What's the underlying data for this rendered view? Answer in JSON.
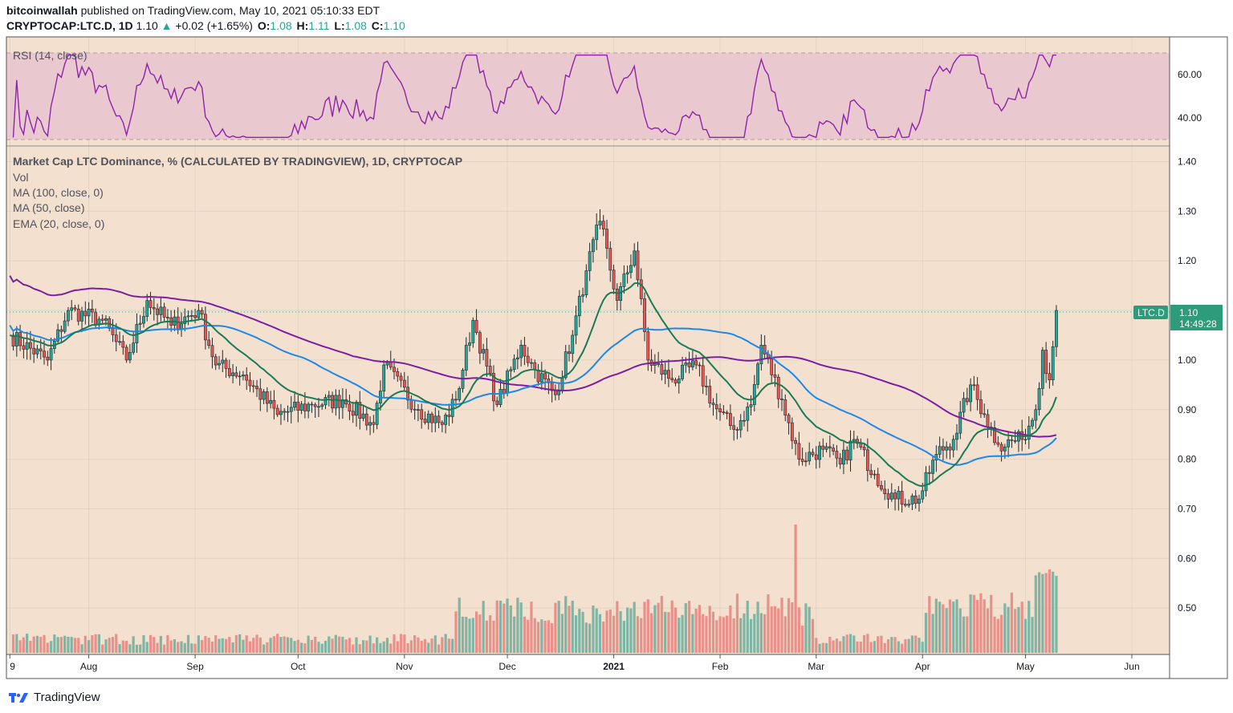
{
  "header": {
    "author": "bitcoinwallah",
    "published_text": "published on TradingView.com, May 10, 2021 05:10:33 EDT",
    "symbol": "CRYPTOCAP:LTC.D, 1D",
    "last": "1.10",
    "change": "+0.02 (+1.65%)",
    "o_label": "O:",
    "o": "1.08",
    "h_label": "H:",
    "h": "1.11",
    "l_label": "L:",
    "l": "1.08",
    "c_label": "C:",
    "c": "1.10"
  },
  "colors": {
    "background": "#f3e0cf",
    "rsi_band": "#e9c8cf",
    "rsi_line": "#8e24aa",
    "up": "#26a69a",
    "down": "#ef5350",
    "vol_up": "#7fb5a5",
    "vol_down": "#e8918a",
    "ma100": "#7b1fa2",
    "ma50": "#1e88e5",
    "ema20": "#1b7a55",
    "grid": "#e5d3c2"
  },
  "rsi_pane": {
    "label": "RSI (14, close)",
    "ticks": [
      "60.00",
      "40.00"
    ]
  },
  "price_pane": {
    "title": "Market Cap LTC Dominance, % (CALCULATED BY TRADINGVIEW), 1D, CRYPTOCAP",
    "legend": [
      "Vol",
      "MA (100, close, 0)",
      "MA (50, close)",
      "EMA (20, close, 0)"
    ],
    "ticks": [
      "1.40",
      "1.30",
      "1.20",
      "1.10",
      "1.00",
      "0.90",
      "0.80",
      "0.70",
      "0.60",
      "0.50"
    ],
    "last_badge": {
      "symbol": "LTC.D",
      "value": "1.10",
      "countdown": "14:49:28"
    }
  },
  "x_axis": {
    "labels": [
      "9",
      "Aug",
      "Sep",
      "Oct",
      "Nov",
      "Dec",
      "2021",
      "Feb",
      "Mar",
      "Apr",
      "May",
      "Jun"
    ]
  },
  "footer": {
    "brand": "TradingView"
  },
  "chart_data": {
    "type": "candlestick",
    "title": "Market Cap LTC Dominance, % (CALCULATED BY TRADINGVIEW), 1D, CRYPTOCAP",
    "price_range": [
      0.4,
      1.42
    ],
    "rsi_range": [
      28,
      70
    ],
    "rsi_levels": [
      70,
      30
    ],
    "close_anchors": [
      [
        "2020-07-09",
        1.05
      ],
      [
        "2020-07-20",
        1.0
      ],
      [
        "2020-07-26",
        1.1
      ],
      [
        "2020-08-05",
        1.08
      ],
      [
        "2020-08-12",
        1.0
      ],
      [
        "2020-08-18",
        1.12
      ],
      [
        "2020-08-25",
        1.07
      ],
      [
        "2020-09-02",
        1.1
      ],
      [
        "2020-09-07",
        0.99
      ],
      [
        "2020-09-15",
        0.97
      ],
      [
        "2020-09-25",
        0.89
      ],
      [
        "2020-10-05",
        0.91
      ],
      [
        "2020-10-14",
        0.92
      ],
      [
        "2020-10-23",
        0.87
      ],
      [
        "2020-10-26",
        0.99
      ],
      [
        "2020-11-05",
        0.9
      ],
      [
        "2020-11-12",
        0.87
      ],
      [
        "2020-11-16",
        0.92
      ],
      [
        "2020-11-21",
        1.08
      ],
      [
        "2020-11-28",
        0.91
      ],
      [
        "2020-12-05",
        1.03
      ],
      [
        "2020-12-09",
        0.98
      ],
      [
        "2020-12-15",
        0.93
      ],
      [
        "2020-12-20",
        1.05
      ],
      [
        "2020-12-24",
        1.18
      ],
      [
        "2020-12-28",
        1.28
      ],
      [
        "2021-01-02",
        1.12
      ],
      [
        "2021-01-07",
        1.22
      ],
      [
        "2021-01-11",
        1.0
      ],
      [
        "2021-01-18",
        0.96
      ],
      [
        "2021-01-25",
        0.99
      ],
      [
        "2021-01-30",
        0.91
      ],
      [
        "2021-02-05",
        0.86
      ],
      [
        "2021-02-10",
        0.91
      ],
      [
        "2021-02-13",
        1.03
      ],
      [
        "2021-02-19",
        0.92
      ],
      [
        "2021-02-24",
        0.8
      ],
      [
        "2021-03-03",
        0.82
      ],
      [
        "2021-03-08",
        0.79
      ],
      [
        "2021-03-12",
        0.84
      ],
      [
        "2021-03-18",
        0.77
      ],
      [
        "2021-03-24",
        0.72
      ],
      [
        "2021-03-31",
        0.72
      ],
      [
        "2021-04-05",
        0.81
      ],
      [
        "2021-04-10",
        0.84
      ],
      [
        "2021-04-15",
        0.95
      ],
      [
        "2021-04-19",
        0.89
      ],
      [
        "2021-04-23",
        0.83
      ],
      [
        "2021-04-30",
        0.84
      ],
      [
        "2021-05-04",
        0.9
      ],
      [
        "2021-05-06",
        1.02
      ],
      [
        "2021-05-08",
        0.96
      ],
      [
        "2021-05-10",
        1.1
      ]
    ],
    "volume_peak_date": "2021-02-23",
    "indicators": [
      "EMA (20, close, 0)",
      "MA (50, close)",
      "MA (100, close, 0)",
      "RSI (14, close)"
    ]
  }
}
